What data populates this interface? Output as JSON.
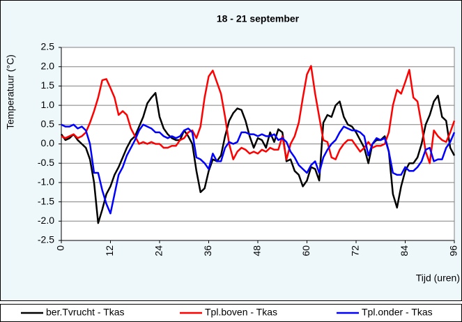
{
  "chart_data": {
    "type": "line",
    "title": "18 - 21 september",
    "y_label": "Temperatuur (°C)",
    "x_label": "Tijd (uren)",
    "x": [
      0,
      1,
      2,
      3,
      4,
      5,
      6,
      7,
      8,
      9,
      10,
      11,
      12,
      13,
      14,
      15,
      16,
      17,
      18,
      19,
      20,
      21,
      22,
      23,
      24,
      25,
      26,
      27,
      28,
      29,
      30,
      31,
      32,
      33,
      34,
      35,
      36,
      37,
      38,
      39,
      40,
      41,
      42,
      43,
      44,
      45,
      46,
      47,
      48,
      49,
      50,
      51,
      52,
      53,
      54,
      55,
      56,
      57,
      58,
      59,
      60,
      61,
      62,
      63,
      64,
      65,
      66,
      67,
      68,
      69,
      70,
      71,
      72,
      73,
      74,
      75,
      76,
      77,
      78,
      79,
      80,
      81,
      82,
      83,
      84,
      85,
      86,
      87,
      88,
      89,
      90,
      91,
      92,
      93,
      94,
      95,
      96
    ],
    "series": [
      {
        "name": "ber.Tvrucht - Tkas",
        "color": "#000000",
        "values": [
          0.25,
          0.1,
          0.15,
          0.25,
          0.1,
          0.0,
          -0.1,
          -0.4,
          -1.0,
          -2.05,
          -1.7,
          -1.3,
          -1.1,
          -0.8,
          -0.6,
          -0.35,
          -0.1,
          0.1,
          0.2,
          0.45,
          0.7,
          1.05,
          1.2,
          1.32,
          0.7,
          0.4,
          0.25,
          0.15,
          0.1,
          0.1,
          0.35,
          0.2,
          0.0,
          -0.7,
          -1.25,
          -1.15,
          -0.7,
          -0.4,
          -0.45,
          -0.3,
          0.2,
          0.6,
          0.8,
          0.92,
          0.88,
          0.6,
          0.2,
          -0.1,
          0.15,
          0.1,
          -0.1,
          0.3,
          0.05,
          0.38,
          0.3,
          -0.45,
          -0.4,
          -0.7,
          -0.8,
          -1.1,
          -0.95,
          -0.6,
          -0.65,
          -0.95,
          0.55,
          0.75,
          0.7,
          1.0,
          1.1,
          0.7,
          0.5,
          0.45,
          0.3,
          0.1,
          -0.1,
          -0.5,
          0.0,
          0.1,
          0.1,
          0.2,
          -0.2,
          -1.3,
          -1.65,
          -1.1,
          -0.7,
          -0.5,
          -0.5,
          -0.35,
          0.0,
          0.5,
          0.75,
          1.1,
          1.25,
          0.7,
          0.6,
          -0.1,
          -0.3
        ]
      },
      {
        "name": "Tpl.boven - Tkas",
        "color": "#ff0000",
        "values": [
          0.2,
          0.15,
          0.2,
          0.25,
          0.15,
          0.2,
          0.3,
          0.55,
          0.85,
          1.2,
          1.65,
          1.68,
          1.45,
          1.2,
          0.75,
          0.85,
          0.75,
          0.4,
          0.2,
          0.0,
          0.05,
          0.0,
          0.05,
          0.0,
          0.0,
          -0.1,
          -0.1,
          -0.05,
          -0.05,
          0.1,
          0.15,
          0.3,
          0.35,
          0.15,
          0.45,
          1.2,
          1.75,
          1.9,
          1.6,
          1.3,
          0.7,
          0.0,
          -0.4,
          -0.2,
          -0.1,
          -0.15,
          -0.25,
          -0.2,
          -0.25,
          -0.15,
          -0.2,
          -0.1,
          -0.15,
          -0.15,
          0.2,
          -0.4,
          0.0,
          0.2,
          0.55,
          1.2,
          1.8,
          2.02,
          1.3,
          0.7,
          0.1,
          0.05,
          -0.35,
          -0.4,
          -0.15,
          0.0,
          0.1,
          0.1,
          -0.05,
          -0.2,
          -0.1,
          0.05,
          -0.1,
          -0.05,
          -0.05,
          0.0,
          0.3,
          1.0,
          1.4,
          1.3,
          1.6,
          1.92,
          1.2,
          1.1,
          0.5,
          -0.2,
          -0.5,
          0.35,
          0.2,
          0.1,
          0.05,
          0.3,
          0.6
        ]
      },
      {
        "name": "Tpl.onder - Tkas",
        "color": "#0000ff",
        "values": [
          0.5,
          0.45,
          0.45,
          0.5,
          0.4,
          0.45,
          0.35,
          0.0,
          -0.75,
          -0.75,
          -1.2,
          -1.55,
          -1.8,
          -1.3,
          -0.8,
          -0.6,
          -0.3,
          -0.1,
          0.1,
          0.35,
          0.5,
          0.45,
          0.4,
          0.3,
          0.3,
          0.2,
          0.15,
          0.2,
          0.15,
          0.2,
          0.35,
          0.4,
          0.3,
          -0.35,
          -0.4,
          -0.5,
          -0.65,
          -0.25,
          -0.45,
          -0.45,
          -0.1,
          0.05,
          0.0,
          0.05,
          0.3,
          0.3,
          0.25,
          0.25,
          0.2,
          0.25,
          0.2,
          0.2,
          0.25,
          0.1,
          0.15,
          0.05,
          -0.2,
          -0.35,
          -0.55,
          -0.65,
          -0.75,
          -0.55,
          -0.45,
          -0.75,
          -0.35,
          -0.15,
          0.0,
          0.1,
          0.3,
          0.45,
          0.4,
          0.35,
          0.35,
          0.3,
          0.2,
          -0.3,
          0.0,
          0.15,
          0.1,
          0.15,
          -0.2,
          -0.75,
          -0.8,
          -0.8,
          -0.6,
          -0.7,
          -0.7,
          -0.6,
          -0.45,
          -0.15,
          -0.1,
          -0.45,
          -0.4,
          -0.4,
          -0.1,
          0.05,
          0.3
        ]
      }
    ],
    "xlim": [
      0,
      96
    ],
    "xticks": [
      0,
      12,
      24,
      36,
      48,
      60,
      72,
      84,
      96
    ],
    "ylim": [
      -2.5,
      2.5
    ],
    "yticks": [
      2.5,
      {
        "value": 2,
        "label": "2.0"
      },
      1.5,
      {
        "value": 1,
        "label": "1.0"
      },
      0.5,
      {
        "value": 0,
        "label": "0.0"
      },
      -0.5,
      {
        "value": -1,
        "label": "-1.0"
      },
      -1.5,
      {
        "value": -2,
        "label": "-2.0"
      },
      -2.5
    ],
    "grid": true,
    "legend": "bottom"
  }
}
